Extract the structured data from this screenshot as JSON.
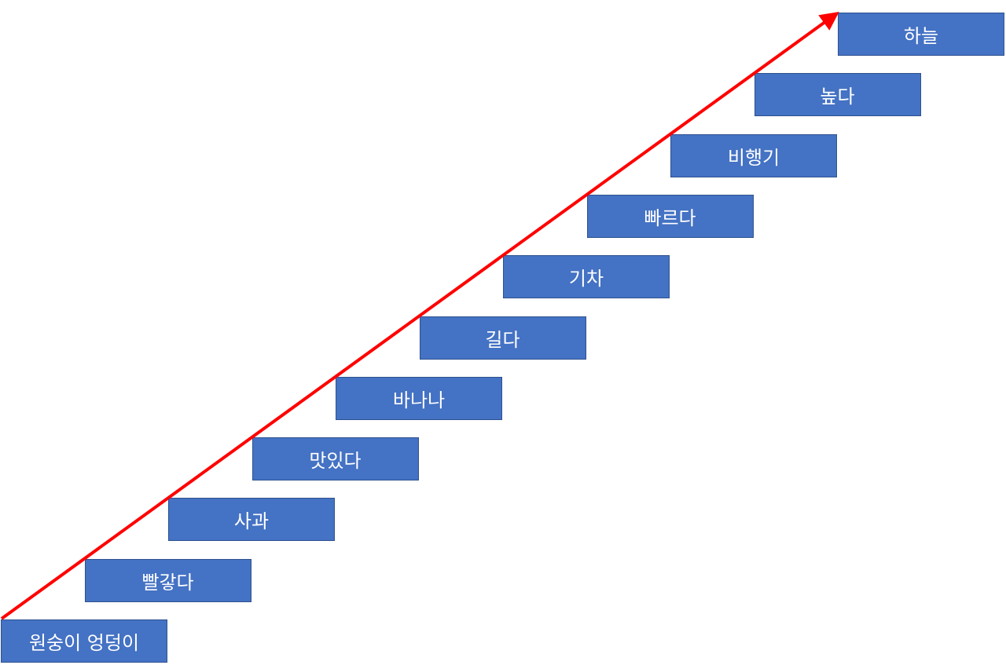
{
  "nodes": [
    {
      "label": "원숭이 엉덩이"
    },
    {
      "label": "빨갛다"
    },
    {
      "label": "사과"
    },
    {
      "label": "맛있다"
    },
    {
      "label": "바나나"
    },
    {
      "label": "길다"
    },
    {
      "label": "기차"
    },
    {
      "label": "빠르다"
    },
    {
      "label": "비행기"
    },
    {
      "label": "높다"
    },
    {
      "label": "하늘"
    }
  ]
}
